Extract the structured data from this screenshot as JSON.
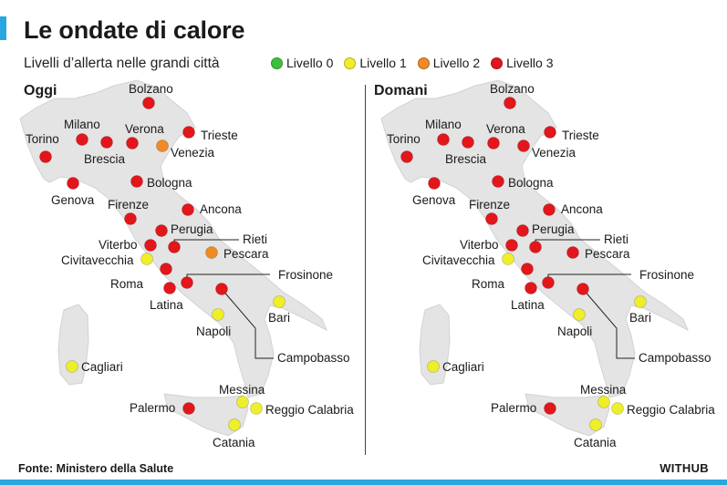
{
  "title": "Le ondate di calore",
  "subtitle": "Livelli d’allerta nelle grandi città",
  "colors": {
    "accent": "#2aa7df",
    "land": "#e4e4e4",
    "level0": "#3fbf3f",
    "level1": "#eeee2a",
    "level2": "#ef8a25",
    "level3": "#e3161b"
  },
  "legend": [
    {
      "label": "Livello 0",
      "level": 0
    },
    {
      "label": "Livello 1",
      "level": 1
    },
    {
      "label": "Livello 2",
      "level": 2
    },
    {
      "label": "Livello 3",
      "level": 3
    }
  ],
  "panels": [
    {
      "title": "Oggi",
      "cities": [
        {
          "name": "Bolzano",
          "level": 3
        },
        {
          "name": "Milano",
          "level": 3
        },
        {
          "name": "Torino",
          "level": 3
        },
        {
          "name": "Verona",
          "level": 3
        },
        {
          "name": "Trieste",
          "level": 3
        },
        {
          "name": "Brescia",
          "level": 3
        },
        {
          "name": "Venezia",
          "level": 2
        },
        {
          "name": "Genova",
          "level": 3
        },
        {
          "name": "Bologna",
          "level": 3
        },
        {
          "name": "Firenze",
          "level": 3
        },
        {
          "name": "Ancona",
          "level": 3
        },
        {
          "name": "Perugia",
          "level": 3
        },
        {
          "name": "Rieti",
          "level": 3
        },
        {
          "name": "Viterbo",
          "level": 3
        },
        {
          "name": "Pescara",
          "level": 2
        },
        {
          "name": "Civitavecchia",
          "level": 1
        },
        {
          "name": "Roma",
          "level": 3
        },
        {
          "name": "Frosinone",
          "level": 3
        },
        {
          "name": "Latina",
          "level": 3
        },
        {
          "name": "Bari",
          "level": 1
        },
        {
          "name": "Napoli",
          "level": 1
        },
        {
          "name": "Campobasso",
          "level": 3
        },
        {
          "name": "Cagliari",
          "level": 1
        },
        {
          "name": "Messina",
          "level": 1
        },
        {
          "name": "Palermo",
          "level": 3
        },
        {
          "name": "Reggio Calabria",
          "level": 1
        },
        {
          "name": "Catania",
          "level": 1
        }
      ]
    },
    {
      "title": "Domani",
      "cities": [
        {
          "name": "Bolzano",
          "level": 3
        },
        {
          "name": "Milano",
          "level": 3
        },
        {
          "name": "Torino",
          "level": 3
        },
        {
          "name": "Verona",
          "level": 3
        },
        {
          "name": "Trieste",
          "level": 3
        },
        {
          "name": "Brescia",
          "level": 3
        },
        {
          "name": "Venezia",
          "level": 3
        },
        {
          "name": "Genova",
          "level": 3
        },
        {
          "name": "Bologna",
          "level": 3
        },
        {
          "name": "Firenze",
          "level": 3
        },
        {
          "name": "Ancona",
          "level": 3
        },
        {
          "name": "Perugia",
          "level": 3
        },
        {
          "name": "Rieti",
          "level": 3
        },
        {
          "name": "Viterbo",
          "level": 3
        },
        {
          "name": "Pescara",
          "level": 3
        },
        {
          "name": "Civitavecchia",
          "level": 1
        },
        {
          "name": "Roma",
          "level": 3
        },
        {
          "name": "Frosinone",
          "level": 3
        },
        {
          "name": "Latina",
          "level": 3
        },
        {
          "name": "Bari",
          "level": 1
        },
        {
          "name": "Napoli",
          "level": 1
        },
        {
          "name": "Campobasso",
          "level": 3
        },
        {
          "name": "Cagliari",
          "level": 1
        },
        {
          "name": "Messina",
          "level": 1
        },
        {
          "name": "Palermo",
          "level": 3
        },
        {
          "name": "Reggio Calabria",
          "level": 1
        },
        {
          "name": "Catania",
          "level": 1
        }
      ]
    }
  ],
  "source": "Fonte: Ministero della Salute",
  "brand": "WITHUB"
}
